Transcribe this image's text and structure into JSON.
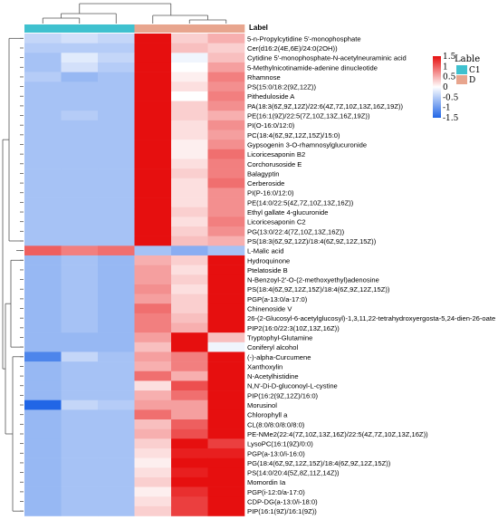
{
  "chart_data": {
    "type": "heatmap",
    "annotation_header": "Label",
    "columns": [
      "C1",
      "C1",
      "C1",
      "D",
      "D",
      "D"
    ],
    "groups": [
      {
        "name": "C1",
        "color": "#3fc1cf"
      },
      {
        "name": "D",
        "color": "#e8a58e"
      }
    ],
    "legend": {
      "title": "Lable",
      "ticks": [
        "1.5",
        "1",
        "0.5",
        "0",
        "-0.5",
        "-1",
        "-1.5"
      ],
      "tick_values": [
        1.5,
        1,
        0.5,
        0,
        -0.5,
        -1,
        -1.5
      ],
      "colorscale": {
        "low": "#2166e6",
        "mid": "#ffffff",
        "high": "#e60f0f"
      }
    },
    "value_range": [
      -1.5,
      1.5
    ],
    "rows": [
      {
        "label": "5-n-Propylcytidine 5'-monophosphate",
        "values": [
          -0.4,
          -0.3,
          -0.4,
          2.0,
          0.3,
          0.5
        ]
      },
      {
        "label": "Cer(d16:2(4E,6E)/24:0(2OH))",
        "values": [
          -0.5,
          -0.5,
          -0.5,
          2.0,
          0.4,
          0.3
        ]
      },
      {
        "label": "Cytidine 5'-monophosphate-N-acetylneuraminic acid",
        "values": [
          -0.6,
          -0.2,
          -0.4,
          2.0,
          -0.1,
          0.4
        ]
      },
      {
        "label": "5-Methylnicotinamide-adenine dinucleotide",
        "values": [
          -0.6,
          -0.3,
          -0.5,
          2.0,
          0.0,
          0.6
        ]
      },
      {
        "label": "Rhamnose",
        "values": [
          -0.5,
          -0.7,
          -0.6,
          2.0,
          0.1,
          0.8
        ]
      },
      {
        "label": "PS(15:0/18:2(9Z,12Z))",
        "values": [
          -0.6,
          -0.6,
          -0.6,
          2.0,
          0.2,
          0.7
        ]
      },
      {
        "label": "Pitheduloside A",
        "values": [
          -0.6,
          -0.6,
          -0.6,
          2.0,
          0.0,
          0.8
        ]
      },
      {
        "label": "PA(18:3(6Z,9Z,12Z)/22:6(4Z,7Z,10Z,13Z,16Z,19Z))",
        "values": [
          -0.6,
          -0.6,
          -0.6,
          2.0,
          0.3,
          0.7
        ]
      },
      {
        "label": "PE(16:1(9Z)/22:5(7Z,10Z,13Z,16Z,19Z))",
        "values": [
          -0.6,
          -0.5,
          -0.6,
          2.0,
          0.3,
          0.5
        ]
      },
      {
        "label": "PI(O-16:0/12:0)",
        "values": [
          -0.6,
          -0.6,
          -0.6,
          2.0,
          0.2,
          0.7
        ]
      },
      {
        "label": "PC(18:4(6Z,9Z,12Z,15Z)/15:0)",
        "values": [
          -0.6,
          -0.6,
          -0.6,
          2.0,
          0.2,
          0.6
        ]
      },
      {
        "label": "Gypsogenin 3-O-rhamnosylglucuronide",
        "values": [
          -0.6,
          -0.6,
          -0.6,
          2.0,
          0.1,
          0.7
        ]
      },
      {
        "label": "Licoricesaponin B2",
        "values": [
          -0.6,
          -0.6,
          -0.6,
          2.0,
          0.1,
          0.9
        ]
      },
      {
        "label": "Corchorusoside E",
        "values": [
          -0.6,
          -0.6,
          -0.6,
          2.0,
          0.2,
          0.8
        ]
      },
      {
        "label": "Balagyptin",
        "values": [
          -0.6,
          -0.6,
          -0.6,
          2.0,
          0.3,
          0.8
        ]
      },
      {
        "label": "Cerberoside",
        "values": [
          -0.6,
          -0.6,
          -0.6,
          2.0,
          0.2,
          0.9
        ]
      },
      {
        "label": "PI(P-16:0/12:0)",
        "values": [
          -0.6,
          -0.6,
          -0.6,
          2.0,
          0.2,
          0.7
        ]
      },
      {
        "label": "PE(14:0/22:5(4Z,7Z,10Z,13Z,16Z))",
        "values": [
          -0.6,
          -0.6,
          -0.6,
          2.0,
          0.2,
          0.7
        ]
      },
      {
        "label": "Ethyl gallate 4-glucuronide",
        "values": [
          -0.6,
          -0.6,
          -0.6,
          2.0,
          0.3,
          0.7
        ]
      },
      {
        "label": "Licoricesaponin C2",
        "values": [
          -0.6,
          -0.6,
          -0.6,
          2.0,
          0.2,
          0.8
        ]
      },
      {
        "label": "PG(13:0/22:4(7Z,10Z,13Z,16Z))",
        "values": [
          -0.6,
          -0.6,
          -0.6,
          2.0,
          0.3,
          0.7
        ]
      },
      {
        "label": "PS(18:3(6Z,9Z,12Z)/18:4(6Z,9Z,12Z,15Z))",
        "values": [
          -0.6,
          -0.6,
          -0.6,
          2.0,
          0.4,
          0.5
        ]
      },
      {
        "label": "L-Malic acid",
        "values": [
          1.0,
          0.8,
          0.9,
          -0.6,
          -0.8,
          -0.6
        ]
      },
      {
        "label": "Hydroquinone",
        "values": [
          -0.7,
          -0.6,
          -0.7,
          0.5,
          0.3,
          2.0
        ]
      },
      {
        "label": "Ptelatoside B",
        "values": [
          -0.7,
          -0.6,
          -0.7,
          0.6,
          0.2,
          2.0
        ]
      },
      {
        "label": "N-Benzoyl-2'-O-(2-methoxyethyl)adenosine",
        "values": [
          -0.7,
          -0.6,
          -0.7,
          0.6,
          0.3,
          2.0
        ]
      },
      {
        "label": "PS(18:4(6Z,9Z,12Z,15Z)/18:4(6Z,9Z,12Z,15Z))",
        "values": [
          -0.7,
          -0.6,
          -0.7,
          0.7,
          0.2,
          2.0
        ]
      },
      {
        "label": "PGP(a-13:0/a-17:0)",
        "values": [
          -0.7,
          -0.6,
          -0.7,
          0.6,
          0.3,
          2.0
        ]
      },
      {
        "label": "Chinenoside V",
        "values": [
          -0.7,
          -0.6,
          -0.7,
          0.9,
          0.3,
          2.0
        ]
      },
      {
        "label": "26-(2-Glucosyl-6-acetylglucosyl)-1,3,11,22-tetrahydroxyergosta-5,24-dien-26-oate",
        "values": [
          -0.7,
          -0.6,
          -0.7,
          0.8,
          0.4,
          2.0
        ]
      },
      {
        "label": "PIP2(16:0/22:3(10Z,13Z,16Z))",
        "values": [
          -0.7,
          -0.6,
          -0.7,
          0.8,
          0.5,
          2.0
        ]
      },
      {
        "label": "Tryptophyl-Glutamine",
        "values": [
          -0.7,
          -0.7,
          -0.7,
          0.6,
          2.0,
          0.4
        ]
      },
      {
        "label": "Coniferyl alcohol",
        "values": [
          -0.7,
          -0.7,
          -0.7,
          0.4,
          2.0,
          -0.1
        ]
      },
      {
        "label": "(-)-alpha-Curcumene",
        "values": [
          -1.2,
          -0.4,
          -0.6,
          0.6,
          0.8,
          1.6
        ]
      },
      {
        "label": "Xanthoxylin",
        "values": [
          -0.7,
          -0.6,
          -0.6,
          0.5,
          0.8,
          1.6
        ]
      },
      {
        "label": "N-Acetylhistidine",
        "values": [
          -0.7,
          -0.6,
          -0.6,
          0.9,
          0.5,
          1.5
        ]
      },
      {
        "label": "N,N'-Di-D-gluconoyl-L-cystine",
        "values": [
          -0.7,
          -0.6,
          -0.6,
          0.2,
          1.1,
          1.6
        ]
      },
      {
        "label": "PIP(16:2(9Z,12Z)/16:0)",
        "values": [
          -0.7,
          -0.6,
          -0.6,
          0.5,
          0.9,
          1.6
        ]
      },
      {
        "label": "Morusinol",
        "values": [
          -1.5,
          -0.4,
          -0.5,
          0.6,
          0.6,
          1.5
        ]
      },
      {
        "label": "Chlorophyll a",
        "values": [
          -0.7,
          -0.6,
          -0.6,
          0.9,
          0.6,
          1.6
        ]
      },
      {
        "label": "CL(8:0/8:0/8:0/8:0)",
        "values": [
          -0.7,
          -0.6,
          -0.6,
          0.4,
          1.0,
          1.6
        ]
      },
      {
        "label": "PE-NMe2(22:4(7Z,10Z,13Z,16Z)/22:5(4Z,7Z,10Z,13Z,16Z))",
        "values": [
          -0.7,
          -0.6,
          -0.6,
          0.5,
          1.1,
          1.6
        ]
      },
      {
        "label": "LysoPC(16:1(9Z)/0:0)",
        "values": [
          -0.7,
          -0.6,
          -0.6,
          0.3,
          1.8,
          1.2
        ]
      },
      {
        "label": "PGP(a-13:0/i-16:0)",
        "values": [
          -0.7,
          -0.6,
          -0.6,
          0.2,
          1.4,
          1.4
        ]
      },
      {
        "label": "PG(18:4(6Z,9Z,12Z,15Z)/18:4(6Z,9Z,12Z,15Z))",
        "values": [
          -0.7,
          -0.6,
          -0.6,
          0.1,
          1.5,
          1.5
        ]
      },
      {
        "label": "PS(14:0/20:4(5Z,8Z,11Z,14Z))",
        "values": [
          -0.7,
          -0.6,
          -0.6,
          0.2,
          1.4,
          1.5
        ]
      },
      {
        "label": "Momordin Ia",
        "values": [
          -0.7,
          -0.6,
          -0.6,
          0.3,
          1.5,
          1.6
        ]
      },
      {
        "label": "PGP(i-12:0/a-17:0)",
        "values": [
          -0.7,
          -0.6,
          -0.6,
          0.1,
          1.3,
          1.6
        ]
      },
      {
        "label": "CDP-DG(a-13:0/i-18:0)",
        "values": [
          -0.7,
          -0.6,
          -0.6,
          0.2,
          1.2,
          1.6
        ]
      },
      {
        "label": "PIP(16:1(9Z)/16:1(9Z))",
        "values": [
          -0.7,
          -0.6,
          -0.6,
          0.3,
          1.2,
          1.6
        ]
      }
    ]
  }
}
